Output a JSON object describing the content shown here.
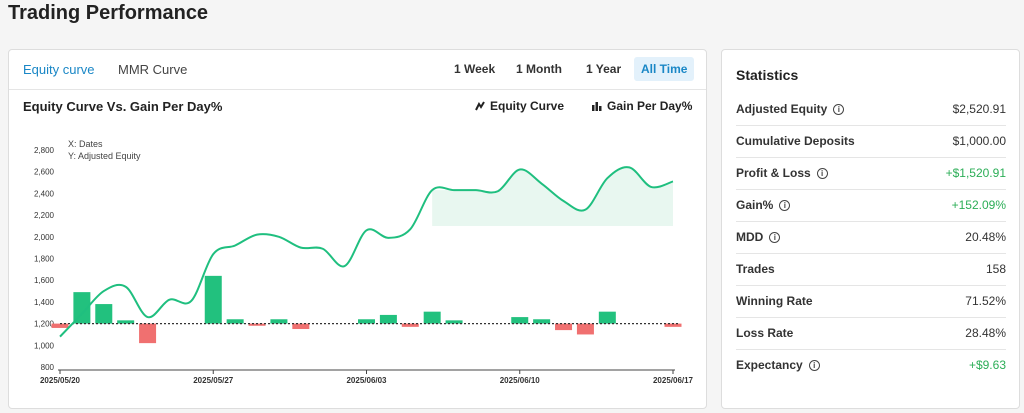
{
  "page_title": "Trading Performance",
  "tabs": [
    {
      "label": "Equity curve",
      "active": true
    },
    {
      "label": "MMR Curve",
      "active": false
    }
  ],
  "ranges": [
    {
      "label": "1 Week",
      "active": false
    },
    {
      "label": "1 Month",
      "active": false
    },
    {
      "label": "1 Year",
      "active": false
    },
    {
      "label": "All Time",
      "active": true
    }
  ],
  "chart": {
    "title": "Equity Curve Vs. Gain Per Day%",
    "legend_equity": "Equity Curve",
    "legend_gain": "Gain Per Day%",
    "note_x": "X: Dates",
    "note_y": "Y: Adjusted Equity"
  },
  "chart_data": {
    "type": "line",
    "title": "Equity Curve Vs. Gain Per Day%",
    "ylim": [
      800,
      2800
    ],
    "y_ticks": [
      "800",
      "1,000",
      "1,200",
      "1,400",
      "1,600",
      "1,800",
      "2,000",
      "2,200",
      "2,400",
      "2,600",
      "2,800"
    ],
    "x_ticks": [
      "2025/05/20",
      "2025/05/27",
      "2025/06/03",
      "2025/06/10",
      "2025/06/17"
    ],
    "baseline": 1200,
    "equity_curve": {
      "name": "Equity Curve",
      "color": "#1fbf7f",
      "points": [
        [
          0,
          1080
        ],
        [
          1,
          1290
        ],
        [
          2,
          1500
        ],
        [
          3,
          1540
        ],
        [
          4,
          1260
        ],
        [
          5,
          1420
        ],
        [
          6,
          1410
        ],
        [
          7,
          1840
        ],
        [
          8,
          1920
        ],
        [
          9,
          2020
        ],
        [
          10,
          2000
        ],
        [
          11,
          1900
        ],
        [
          12,
          1890
        ],
        [
          13,
          1730
        ],
        [
          14,
          2060
        ],
        [
          15,
          1990
        ],
        [
          16,
          2070
        ],
        [
          17,
          2430
        ],
        [
          18,
          2430
        ],
        [
          19,
          2430
        ],
        [
          20,
          2420
        ],
        [
          21,
          2620
        ],
        [
          22,
          2490
        ],
        [
          23,
          2330
        ],
        [
          24,
          2250
        ],
        [
          25,
          2540
        ],
        [
          26,
          2640
        ],
        [
          27,
          2460
        ],
        [
          28,
          2510
        ]
      ],
      "shaded_from": 17
    },
    "gain_per_day": {
      "name": "Gain Per Day%",
      "pos_color": "#22c17e",
      "neg_color": "#f07070",
      "bars": [
        [
          0,
          -40
        ],
        [
          1,
          290
        ],
        [
          2,
          180
        ],
        [
          3,
          30
        ],
        [
          4,
          -180
        ],
        [
          7,
          440
        ],
        [
          8,
          40
        ],
        [
          9,
          -20
        ],
        [
          10,
          40
        ],
        [
          11,
          -50
        ],
        [
          14,
          40
        ],
        [
          15,
          80
        ],
        [
          16,
          -30
        ],
        [
          17,
          110
        ],
        [
          18,
          30
        ],
        [
          21,
          60
        ],
        [
          22,
          40
        ],
        [
          23,
          -60
        ],
        [
          24,
          -100
        ],
        [
          25,
          110
        ],
        [
          28,
          -30
        ]
      ]
    }
  },
  "statistics": {
    "title": "Statistics",
    "rows": [
      {
        "label": "Adjusted Equity",
        "value": "$2,520.91",
        "info": true,
        "positive": false
      },
      {
        "label": "Cumulative Deposits",
        "value": "$1,000.00",
        "info": false,
        "positive": false
      },
      {
        "label": "Profit & Loss",
        "value": "+$1,520.91",
        "info": true,
        "positive": true
      },
      {
        "label": "Gain%",
        "value": "+152.09%",
        "info": true,
        "positive": true
      },
      {
        "label": "MDD",
        "value": "20.48%",
        "info": true,
        "positive": false
      },
      {
        "label": "Trades",
        "value": "158",
        "info": false,
        "positive": false
      },
      {
        "label": "Winning Rate",
        "value": "71.52%",
        "info": false,
        "positive": false
      },
      {
        "label": "Loss Rate",
        "value": "28.48%",
        "info": false,
        "positive": false
      },
      {
        "label": "Expectancy",
        "value": "+$9.63",
        "info": true,
        "positive": true
      }
    ]
  }
}
